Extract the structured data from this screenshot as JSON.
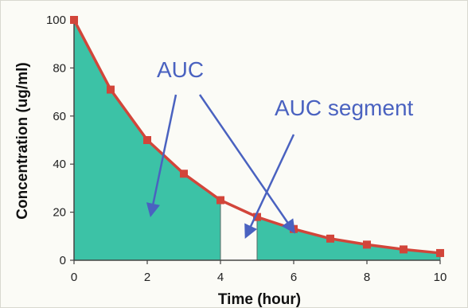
{
  "chart_data": {
    "type": "area",
    "xlabel": "Time (hour)",
    "ylabel": "Concentration (ug/ml)",
    "xlim": [
      0,
      10
    ],
    "ylim": [
      0,
      100
    ],
    "x_ticks": [
      0,
      2,
      4,
      6,
      8,
      10
    ],
    "y_ticks": [
      0,
      20,
      40,
      60,
      80,
      100
    ],
    "series": [
      {
        "x": [
          0,
          1,
          2,
          3,
          4,
          5,
          6,
          7,
          8,
          9,
          10
        ],
        "values": [
          100,
          71,
          50,
          36,
          25,
          18,
          13,
          9,
          6.5,
          4.5,
          3
        ]
      }
    ],
    "shaded_intervals": [
      [
        0,
        4
      ],
      [
        5,
        10
      ]
    ],
    "grid": false,
    "annotations": [
      {
        "text": "AUC",
        "arrows_to": [
          [
            2.1,
            19
          ],
          [
            6.0,
            12
          ]
        ]
      },
      {
        "text": "AUC segment",
        "arrows_to": [
          [
            4.7,
            10
          ]
        ]
      }
    ],
    "colors": {
      "line": "#d2453a",
      "marker": "#d2453a",
      "fill": "#3cc2a6",
      "annotation": "#4a62c0",
      "axis": "#444444",
      "background": "#fbfbf6"
    }
  }
}
